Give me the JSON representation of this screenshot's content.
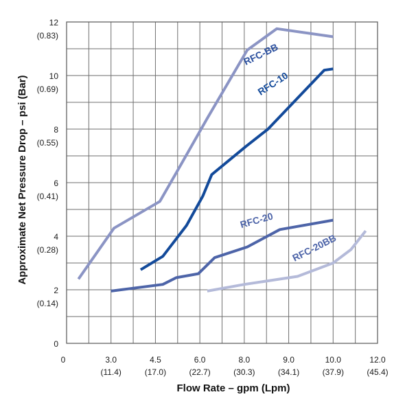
{
  "chart_data": {
    "type": "line",
    "xlabel": "Flow Rate – gpm (Lpm)",
    "ylabel": "Approximate Net Pressure Drop – psi (Bar)",
    "xlim": [
      1.5,
      12.0
    ],
    "ylim": [
      0,
      12
    ],
    "grid": true,
    "x_ticks": [
      {
        "value": 1.5,
        "label": "0",
        "sub": ""
      },
      {
        "value": 3.0,
        "label": "3.0",
        "sub": "(11.4)"
      },
      {
        "value": 4.5,
        "label": "4.5",
        "sub": "(17.0)"
      },
      {
        "value": 6.0,
        "label": "6.0",
        "sub": "(22.7)"
      },
      {
        "value": 7.5,
        "label": "8.0",
        "sub": "(30.3)"
      },
      {
        "value": 9.0,
        "label": "9.0",
        "sub": "(34.1)"
      },
      {
        "value": 10.5,
        "label": "10.0",
        "sub": "(37.9)"
      },
      {
        "value": 12.0,
        "label": "12.0",
        "sub": "(45.4)"
      }
    ],
    "y_ticks": [
      {
        "value": 0,
        "label": "0",
        "sub": ""
      },
      {
        "value": 2,
        "label": "2",
        "sub": "(0.14)"
      },
      {
        "value": 4,
        "label": "4",
        "sub": "(0.28)"
      },
      {
        "value": 6,
        "label": "6",
        "sub": "(0.41)"
      },
      {
        "value": 8,
        "label": "8",
        "sub": "(0.55)"
      },
      {
        "value": 10,
        "label": "10",
        "sub": "(0.69)"
      },
      {
        "value": 12,
        "label": "12",
        "sub": "(0.83)"
      }
    ],
    "series": [
      {
        "name": "RFC-BB",
        "color": "#8b94c4",
        "points": [
          [
            1.9,
            2.4
          ],
          [
            3.1,
            4.3
          ],
          [
            4.65,
            5.3
          ],
          [
            5.4,
            6.75
          ],
          [
            6.25,
            8.4
          ],
          [
            7.6,
            10.95
          ],
          [
            8.6,
            11.75
          ],
          [
            10.5,
            11.45
          ]
        ],
        "label_at": [
          7.55,
          10.38
        ]
      },
      {
        "name": "RFC-10",
        "color": "#134a9a",
        "points": [
          [
            4.0,
            2.75
          ],
          [
            4.75,
            3.25
          ],
          [
            5.55,
            4.4
          ],
          [
            6.1,
            5.5
          ],
          [
            6.4,
            6.3
          ],
          [
            7.55,
            7.35
          ],
          [
            8.3,
            8.0
          ],
          [
            10.2,
            10.2
          ],
          [
            10.5,
            10.25
          ]
        ],
        "label_at": [
          8.05,
          9.25
        ]
      },
      {
        "name": "RFC-20",
        "color": "#4d64a8",
        "points": [
          [
            3.0,
            1.95
          ],
          [
            4.75,
            2.2
          ],
          [
            5.2,
            2.45
          ],
          [
            5.95,
            2.6
          ],
          [
            6.5,
            3.2
          ],
          [
            7.6,
            3.6
          ],
          [
            8.7,
            4.25
          ],
          [
            10.5,
            4.6
          ]
        ],
        "label_at": [
          7.4,
          4.3
        ]
      },
      {
        "name": "RFC-20BB",
        "color": "#b4bad9",
        "points": [
          [
            6.25,
            1.95
          ],
          [
            7.5,
            2.2
          ],
          [
            9.3,
            2.5
          ],
          [
            10.5,
            3.0
          ],
          [
            11.1,
            3.5
          ],
          [
            11.6,
            4.2
          ]
        ],
        "label_at": [
          9.2,
          3.05
        ]
      }
    ]
  }
}
